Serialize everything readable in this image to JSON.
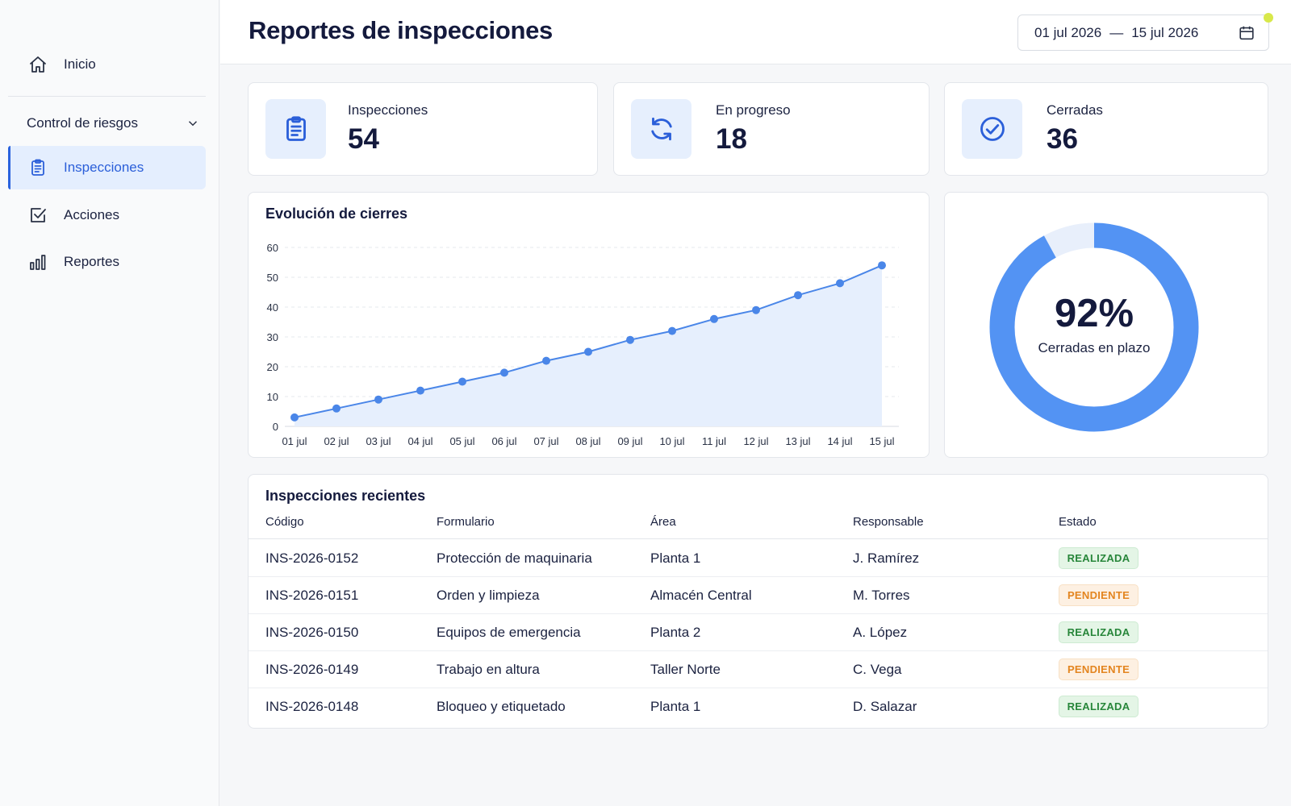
{
  "sidebar": {
    "home_label": "Inicio",
    "group_label": "Control de riesgos",
    "items": [
      {
        "label": "Inspecciones",
        "icon": "clipboard-icon"
      },
      {
        "label": "Acciones",
        "icon": "checkbox-icon"
      },
      {
        "label": "Reportes",
        "icon": "bar-chart-icon"
      }
    ]
  },
  "header": {
    "title": "Reportes de inspecciones",
    "date_from": "01 jul 2026",
    "date_separator": "—",
    "date_to": "15 jul 2026"
  },
  "kpis": [
    {
      "label": "Inspecciones",
      "value": "54",
      "icon": "clipboard-icon"
    },
    {
      "label": "En progreso",
      "value": "18",
      "icon": "refresh-icon"
    },
    {
      "label": "Cerradas",
      "value": "36",
      "icon": "check-circle-icon"
    }
  ],
  "donut": {
    "value_text": "92%",
    "fraction": 0.92,
    "label": "Cerradas en plazo",
    "color": "#5393f3",
    "track_color": "#e8effb"
  },
  "chart_data": {
    "type": "area",
    "title": "Evolución de cierres",
    "xlabel": "",
    "ylabel": "",
    "categories": [
      "01 jul",
      "02 jul",
      "03 jul",
      "04 jul",
      "05 jul",
      "06 jul",
      "07 jul",
      "08 jul",
      "09 jul",
      "10 jul",
      "11 jul",
      "12 jul",
      "13 jul",
      "14 jul",
      "15 jul"
    ],
    "values": [
      3,
      6,
      9,
      12,
      15,
      18,
      22,
      25,
      29,
      32,
      36,
      39,
      44,
      48,
      54
    ],
    "ylim": [
      0,
      60
    ],
    "yticks": [
      0,
      10,
      20,
      30,
      40,
      50,
      60
    ],
    "grid": true,
    "line_color": "#4a86e8",
    "fill_color": "#e6effd"
  },
  "table": {
    "title": "Inspecciones recientes",
    "headers": [
      "Código",
      "Formulario",
      "Área",
      "Responsable",
      "Estado"
    ],
    "rows": [
      {
        "code": "INS-2026-0152",
        "form": "Protección de maquinaria",
        "area": "Planta 1",
        "owner": "J. Ramírez",
        "status": "REALIZADA",
        "status_type": "ok"
      },
      {
        "code": "INS-2026-0151",
        "form": "Orden y limpieza",
        "area": "Almacén Central",
        "owner": "M. Torres",
        "status": "PENDIENTE",
        "status_type": "pend"
      },
      {
        "code": "INS-2026-0150",
        "form": "Equipos de emergencia",
        "area": "Planta 2",
        "owner": "A. López",
        "status": "REALIZADA",
        "status_type": "ok"
      },
      {
        "code": "INS-2026-0149",
        "form": "Trabajo en altura",
        "area": "Taller Norte",
        "owner": "C. Vega",
        "status": "PENDIENTE",
        "status_type": "pend"
      },
      {
        "code": "INS-2026-0148",
        "form": "Bloqueo y etiquetado",
        "area": "Planta 1",
        "owner": "D. Salazar",
        "status": "REALIZADA",
        "status_type": "ok"
      }
    ]
  }
}
